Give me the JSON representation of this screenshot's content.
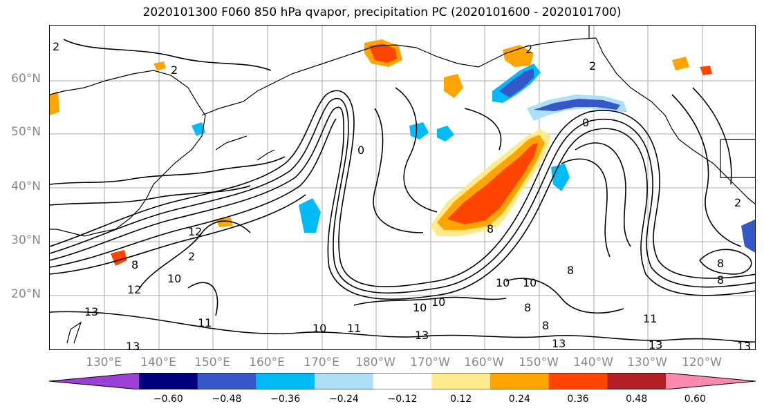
{
  "title": "2020101300 F060 850 hPa qvapor, precipitation PC (2020101600 - 2020101700)",
  "lat_labels": [
    "60°N",
    "50°N",
    "40°N",
    "30°N",
    "20°N"
  ],
  "lon_labels": [
    "130°E",
    "140°E",
    "150°E",
    "160°E",
    "170°E",
    "180°W",
    "170°W",
    "160°W",
    "150°W",
    "140°W",
    "130°W",
    "120°W"
  ],
  "contour_labels": [
    "2",
    "2",
    "2",
    "2",
    "0",
    "0",
    "12",
    "8",
    "12",
    "10",
    "2",
    "13",
    "13",
    "11",
    "10",
    "11",
    "13",
    "10",
    "10",
    "10",
    "8",
    "8",
    "8",
    "13",
    "13",
    "13",
    "11",
    "8",
    "8",
    "8",
    "10",
    "2"
  ],
  "colorbar": {
    "ticks": [
      "−0.60",
      "−0.48",
      "−0.36",
      "−0.24",
      "−0.12",
      "0.12",
      "0.24",
      "0.36",
      "0.48",
      "0.60"
    ],
    "colors": [
      "#9c3fd4",
      "#00007f",
      "#3557c7",
      "#00bbf5",
      "#addff8",
      "#ffffff",
      "#ffeb8c",
      "#ffa400",
      "#ff4500",
      "#b21f24",
      "#ff88b0"
    ]
  },
  "colors": {
    "contour": "#000000",
    "coast": "#000000",
    "grid": "#aaaaaa",
    "axis_label": "#888888"
  }
}
